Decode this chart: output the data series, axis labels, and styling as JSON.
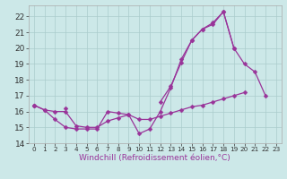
{
  "x_values": [
    0,
    1,
    2,
    3,
    4,
    5,
    6,
    7,
    8,
    9,
    10,
    11,
    12,
    13,
    14,
    15,
    16,
    17,
    18,
    19,
    20,
    21,
    22,
    23
  ],
  "line_dip": [
    16.4,
    16.1,
    15.5,
    15.0,
    14.9,
    14.9,
    14.9,
    16.0,
    15.9,
    15.8,
    14.6,
    14.9,
    16.0,
    17.5,
    19.3,
    20.5,
    21.2,
    21.5,
    22.3,
    20.0,
    null,
    null,
    null,
    null
  ],
  "line_flat": [
    16.4,
    16.1,
    16.0,
    16.0,
    15.1,
    15.0,
    15.0,
    15.4,
    15.6,
    15.8,
    15.5,
    15.5,
    15.7,
    15.9,
    16.1,
    16.3,
    16.4,
    16.6,
    16.8,
    17.0,
    17.2,
    null,
    null,
    null
  ],
  "line_steep": [
    16.4,
    null,
    null,
    16.2,
    null,
    null,
    null,
    null,
    null,
    null,
    null,
    null,
    16.6,
    17.6,
    19.1,
    20.5,
    21.2,
    21.6,
    22.3,
    20.0,
    19.0,
    18.5,
    17.0,
    null
  ],
  "background_color": "#cce8e8",
  "grid_color": "#aacccc",
  "line_color": "#993399",
  "marker": "D",
  "marker_size": 2.5,
  "xlabel": "Windchill (Refroidissement éolien,°C)",
  "xlim": [
    -0.5,
    23.5
  ],
  "ylim": [
    14.0,
    22.7
  ],
  "yticks": [
    14,
    15,
    16,
    17,
    18,
    19,
    20,
    21,
    22
  ],
  "xticks": [
    0,
    1,
    2,
    3,
    4,
    5,
    6,
    7,
    8,
    9,
    10,
    11,
    12,
    13,
    14,
    15,
    16,
    17,
    18,
    19,
    20,
    21,
    22,
    23
  ],
  "xlabel_fontsize": 6.5,
  "ytick_fontsize": 6.5,
  "xtick_fontsize": 5.2,
  "linewidth": 0.9
}
